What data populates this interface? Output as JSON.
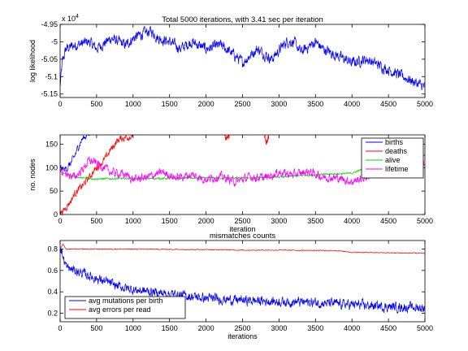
{
  "chart_data": [
    {
      "type": "line",
      "title": "Total 5000 iterations, with 3.41 sec per iteration",
      "xlabel": "",
      "ylabel": "log likelihood",
      "exponent_label": "x 10",
      "exponent_power": "4",
      "xlim": [
        0,
        5000
      ],
      "ylim": [
        -5.16,
        -4.95
      ],
      "xticks": [
        0,
        500,
        1000,
        1500,
        2000,
        2500,
        3000,
        3500,
        4000,
        4500,
        5000
      ],
      "yticks": [
        -5.15,
        -5.1,
        -5.05,
        -5,
        -4.95
      ],
      "ytick_labels": [
        "-5.15",
        "-5.1",
        "-5.05",
        "-5",
        "-4.95"
      ],
      "grid": false,
      "series": [
        {
          "color": "#0000ff",
          "noise": 0.012,
          "x": [
            0,
            30,
            80,
            200,
            400,
            500,
            700,
            900,
            1000,
            1150,
            1250,
            1350,
            1500,
            1650,
            1800,
            2000,
            2200,
            2400,
            2500,
            2700,
            2900,
            3100,
            3200,
            3300,
            3500,
            3600,
            3800,
            4000,
            4200,
            4400,
            4600,
            4700,
            4800,
            4900,
            5000
          ],
          "y": [
            -5.13,
            -5.06,
            -5.02,
            -5.01,
            -5.0,
            -5.02,
            -4.99,
            -5.01,
            -4.99,
            -4.975,
            -4.97,
            -4.99,
            -5.0,
            -5.02,
            -5.0,
            -5.02,
            -5.01,
            -5.04,
            -5.06,
            -5.02,
            -5.05,
            -5.0,
            -5.0,
            -5.03,
            -5.0,
            -5.02,
            -5.04,
            -5.06,
            -5.05,
            -5.07,
            -5.09,
            -5.1,
            -5.11,
            -5.12,
            -5.13
          ]
        }
      ]
    },
    {
      "type": "line",
      "title": "",
      "xlabel": "iteration",
      "ylabel": "no. nodes",
      "xlim": [
        0,
        5000
      ],
      "ylim": [
        0,
        170
      ],
      "xticks": [
        0,
        500,
        1000,
        1500,
        2000,
        2500,
        3000,
        3500,
        4000,
        4500,
        5000
      ],
      "yticks": [
        0,
        50,
        100,
        150
      ],
      "ytick_labels": [
        "0",
        "50",
        "100",
        "150"
      ],
      "legend": "top-right",
      "grid": false,
      "series": [
        {
          "name": "births",
          "color": "#0000ff",
          "noise": 6,
          "x": [
            0,
            50,
            100,
            150,
            200,
            250,
            300,
            350,
            400
          ],
          "y": [
            100,
            95,
            100,
            110,
            125,
            145,
            160,
            168,
            172
          ]
        },
        {
          "name": "deaths",
          "color": "#ff0000",
          "noise": 6,
          "x": [
            0,
            50,
            100,
            150,
            200,
            300,
            400,
            500,
            600,
            700,
            800,
            900,
            1000
          ],
          "y": [
            5,
            8,
            20,
            30,
            45,
            60,
            80,
            100,
            115,
            140,
            160,
            165,
            168
          ]
        },
        {
          "name": "deaths",
          "color": "#ff0000",
          "noise": 5,
          "x": [
            2250,
            2280,
            2320
          ],
          "y": [
            168,
            160,
            168
          ]
        },
        {
          "name": "deaths",
          "color": "#ff0000",
          "noise": 5,
          "x": [
            2800,
            2830,
            2860
          ],
          "y": [
            168,
            150,
            168
          ]
        },
        {
          "name": "alive",
          "color": "#00dd00",
          "noise": 1.5,
          "x": [
            0,
            100,
            300,
            500,
            1000,
            1500,
            2000,
            2500,
            3000,
            3500,
            4000,
            4200,
            4500,
            4800,
            5000
          ],
          "y": [
            93,
            85,
            78,
            76,
            77,
            77,
            78,
            78,
            80,
            85,
            88,
            100,
            108,
            115,
            127
          ]
        },
        {
          "name": "lifetime",
          "color": "#ff00ff",
          "noise": 7,
          "x": [
            0,
            100,
            200,
            300,
            400,
            500,
            700,
            900,
            1000,
            1200,
            1400,
            1600,
            1800,
            2000,
            2200,
            2400,
            2600,
            2800,
            3000,
            3200,
            3400,
            3600,
            3800,
            4000,
            4200,
            4400,
            4600,
            4800,
            5000
          ],
          "y": [
            95,
            85,
            80,
            95,
            115,
            110,
            90,
            85,
            75,
            80,
            90,
            78,
            85,
            75,
            82,
            70,
            80,
            78,
            90,
            85,
            92,
            80,
            78,
            70,
            80,
            95,
            100,
            105,
            108
          ]
        }
      ]
    },
    {
      "type": "line",
      "title": "mismatches counts",
      "xlabel": "iterations",
      "ylabel": "",
      "xlim": [
        0,
        5000
      ],
      "ylim": [
        0.12,
        0.88
      ],
      "xticks": [
        0,
        500,
        1000,
        1500,
        2000,
        2500,
        3000,
        3500,
        4000,
        4500,
        5000
      ],
      "yticks": [
        0.2,
        0.4,
        0.6,
        0.8
      ],
      "ytick_labels": [
        "0.2",
        "0.4",
        "0.6",
        "0.8"
      ],
      "legend": "bottom-left",
      "grid": false,
      "series": [
        {
          "name": "avg mutations per birth",
          "color": "#0000ff",
          "noise": 0.035,
          "x": [
            0,
            30,
            60,
            100,
            200,
            400,
            600,
            800,
            1000,
            1500,
            2000,
            2500,
            3000,
            3500,
            4000,
            4500,
            5000
          ],
          "y": [
            0.85,
            0.75,
            0.68,
            0.62,
            0.6,
            0.55,
            0.5,
            0.45,
            0.42,
            0.38,
            0.34,
            0.32,
            0.31,
            0.3,
            0.28,
            0.26,
            0.25
          ]
        },
        {
          "name": "avg errors per read",
          "color": "#ff0000",
          "noise": 0.003,
          "x": [
            0,
            40,
            80,
            200,
            1000,
            2000,
            2500,
            3000,
            3800,
            4000,
            4500,
            5000
          ],
          "y": [
            0.8,
            0.85,
            0.8,
            0.8,
            0.8,
            0.795,
            0.79,
            0.79,
            0.785,
            0.77,
            0.765,
            0.76
          ]
        }
      ]
    }
  ]
}
